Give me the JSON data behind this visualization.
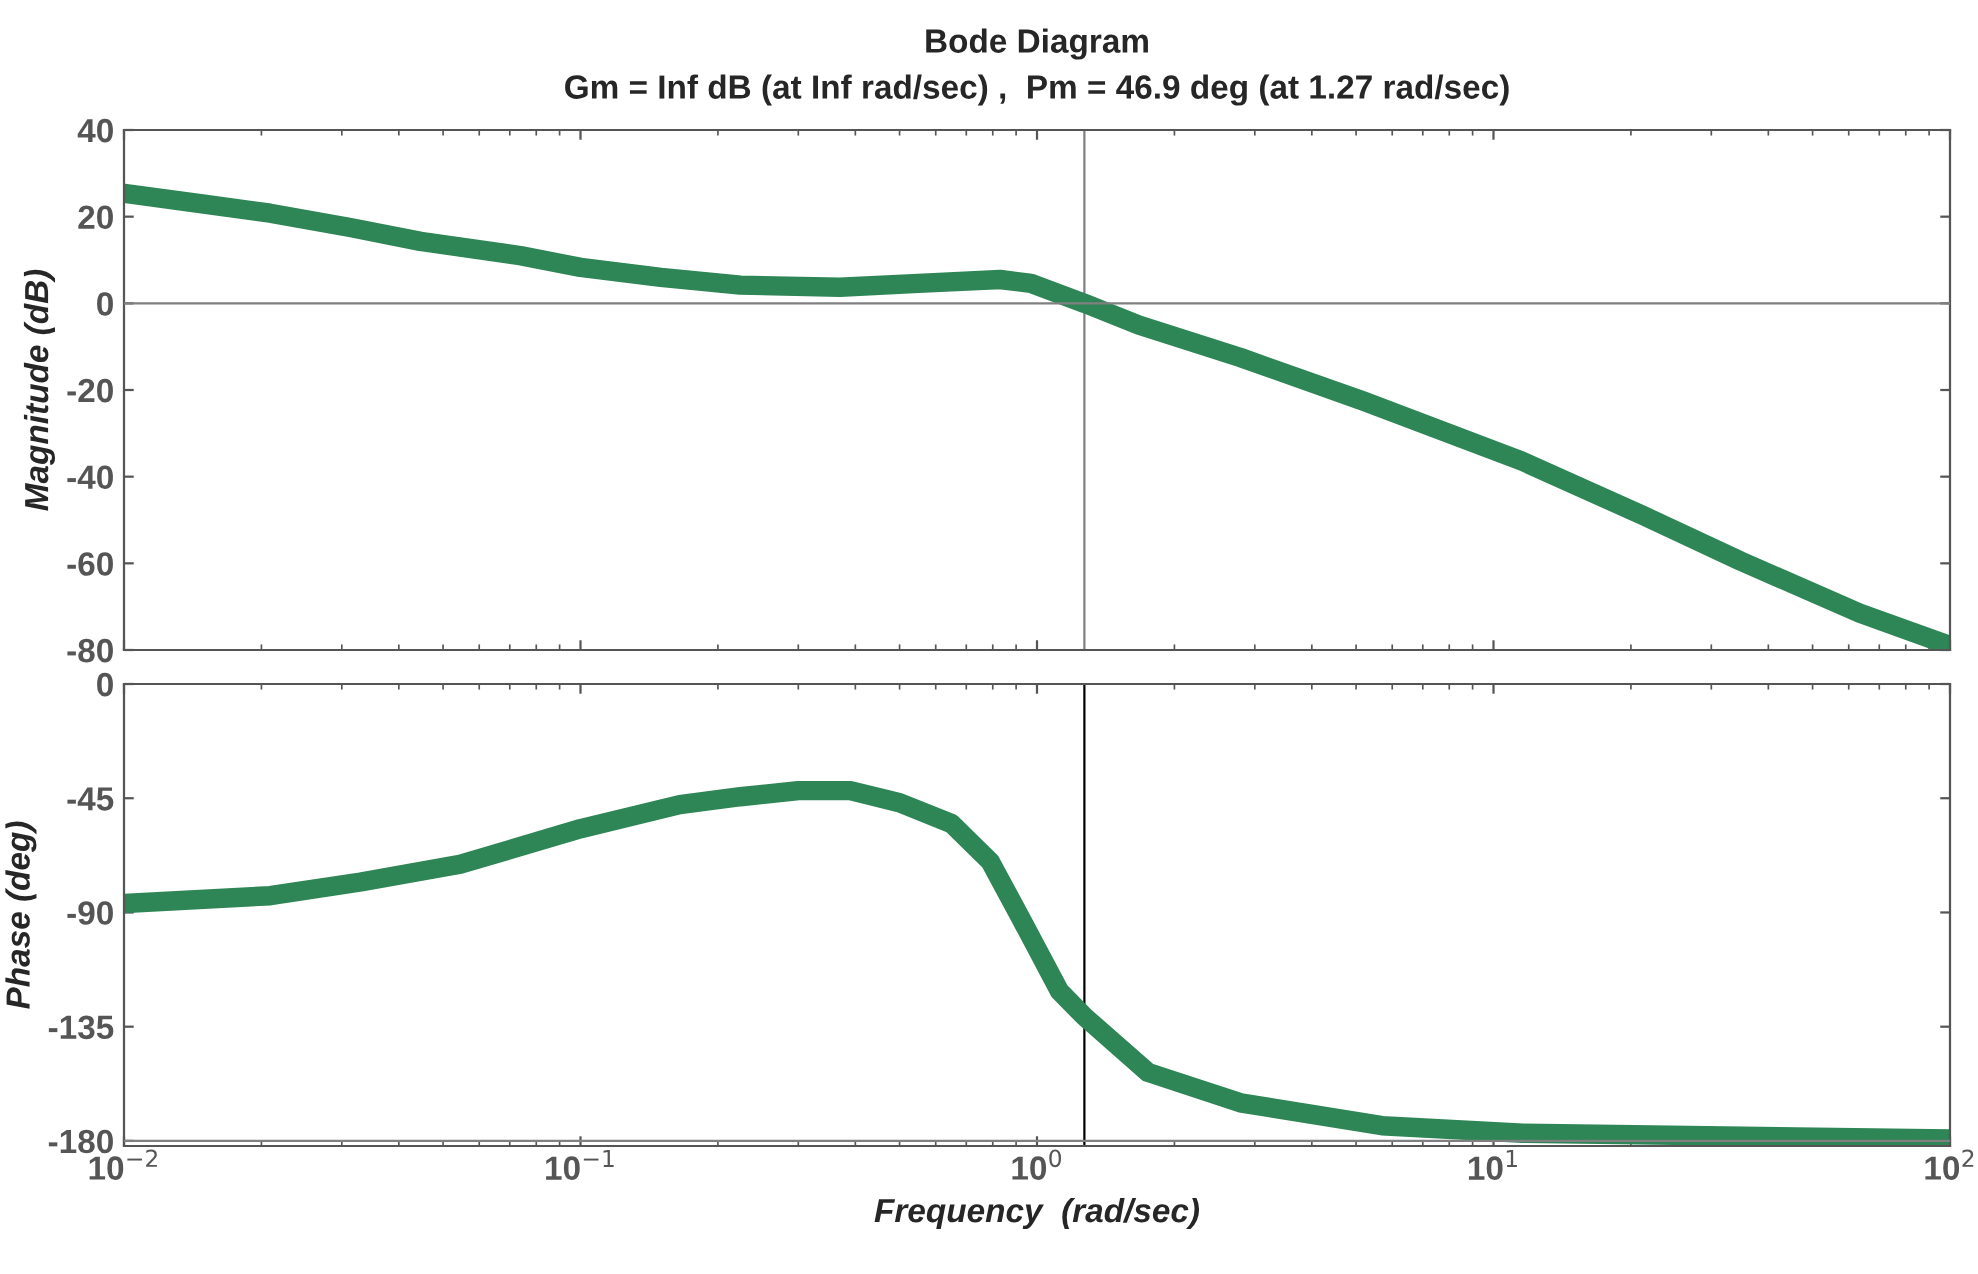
{
  "chart_data": [
    {
      "type": "line",
      "title": "Bode Diagram",
      "subtitle": "Gm = Inf dB (at Inf rad/sec) ,  Pm = 46.9 deg (at 1.27 rad/sec)",
      "ylabel": "Magnitude (dB)",
      "log": "x",
      "x": [
        0.01,
        0.0147,
        0.0209,
        0.0313,
        0.0446,
        0.0738,
        0.1,
        0.15,
        0.224,
        0.37,
        0.55,
        0.83,
        0.97,
        1.27,
        1.67,
        2.79,
        5.2,
        11.6,
        21.3,
        34.8,
        63.4,
        100
      ],
      "series": [
        {
          "color": "#2e8555",
          "values": [
            25.4,
            23,
            20.8,
            17.5,
            14.3,
            11,
            8.3,
            6,
            4.2,
            3.7,
            4.6,
            5.5,
            4.6,
            0,
            -5,
            -12.5,
            -22.6,
            -36.5,
            -49,
            -59.5,
            -71.5,
            -79
          ]
        }
      ],
      "xlim": [
        0.01,
        100
      ],
      "xticks": [
        0.01,
        0.1,
        1,
        10,
        100
      ],
      "ylim": [
        -80,
        40
      ],
      "yticks": [
        -80,
        -60,
        -40,
        -20,
        0,
        20,
        40
      ],
      "tick_labels": "y",
      "grid": false,
      "line_style": "solid",
      "marker": "none",
      "legend": false,
      "ref_lines": [
        {
          "axis": "y",
          "value": 0,
          "color": "#808080"
        },
        {
          "axis": "x",
          "value": 1.27,
          "color": "#808080"
        }
      ]
    },
    {
      "type": "line",
      "ylabel": "Phase (deg)",
      "xlabel": "Frequency  (rad/sec)",
      "log": "x",
      "x": [
        0.01,
        0.0209,
        0.033,
        0.0545,
        0.1,
        0.165,
        0.224,
        0.3,
        0.39,
        0.5,
        0.65,
        0.79,
        0.92,
        1.12,
        1.27,
        1.75,
        2.79,
        5.7,
        11.6,
        100
      ],
      "series": [
        {
          "color": "#2e8555",
          "values": [
            -86.5,
            -83.4,
            -78,
            -71,
            -57,
            -47.5,
            -44.4,
            -42,
            -42,
            -46.8,
            -55,
            -70,
            -92,
            -121,
            -131,
            -153,
            -165,
            -174,
            -177,
            -179.2
          ]
        }
      ],
      "xlim": [
        0.01,
        100
      ],
      "xticks": [
        {
          "value": 0.01,
          "label": "10$^{−2}$"
        },
        {
          "value": 0.1,
          "label": "10$^{−1}$"
        },
        {
          "value": 1,
          "label": "10$^{0}$"
        },
        {
          "value": 10,
          "label": "10$^{1}$"
        },
        {
          "value": 100,
          "label": "10$^{2}$"
        }
      ],
      "ylim": [
        -182,
        0
      ],
      "yticks": [
        -180,
        -135,
        -90,
        -45,
        0
      ],
      "grid": false,
      "line_style": "solid",
      "marker": "none",
      "legend": false,
      "ref_lines": [
        {
          "axis": "y",
          "value": -180,
          "color": "#808080"
        },
        {
          "axis": "x",
          "value": 1.27,
          "color": "#000000"
        }
      ]
    }
  ]
}
